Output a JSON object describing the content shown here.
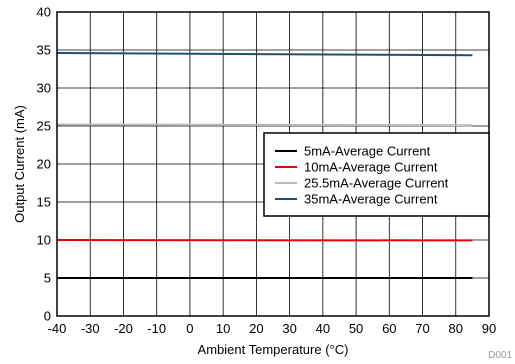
{
  "chart_data": {
    "type": "line",
    "xlabel": "Ambient Temperature (°C)",
    "ylabel": "Output Current (mA)",
    "xlim": [
      -40,
      90
    ],
    "ylim": [
      0,
      40
    ],
    "xticks": [
      -40,
      -30,
      -20,
      -10,
      0,
      10,
      20,
      30,
      40,
      50,
      60,
      70,
      80,
      90
    ],
    "yticks": [
      0,
      5,
      10,
      15,
      20,
      25,
      30,
      35,
      40
    ],
    "grid": true,
    "legend_position": "right",
    "figure_code": "D001",
    "series": [
      {
        "name": "5mA-Average Current",
        "color": "#000000",
        "x": [
          -40,
          85
        ],
        "y": [
          5.0,
          5.0
        ]
      },
      {
        "name": "10mA-Average Current",
        "color": "#e8000b",
        "x": [
          -40,
          85
        ],
        "y": [
          10.0,
          9.95
        ]
      },
      {
        "name": "25.5mA-Average Current",
        "color": "#bbbbbb",
        "x": [
          -40,
          85
        ],
        "y": [
          25.2,
          25.1
        ]
      },
      {
        "name": "35mA-Average Current",
        "color": "#1f4e6e",
        "x": [
          -40,
          85
        ],
        "y": [
          34.6,
          34.3
        ]
      }
    ]
  }
}
